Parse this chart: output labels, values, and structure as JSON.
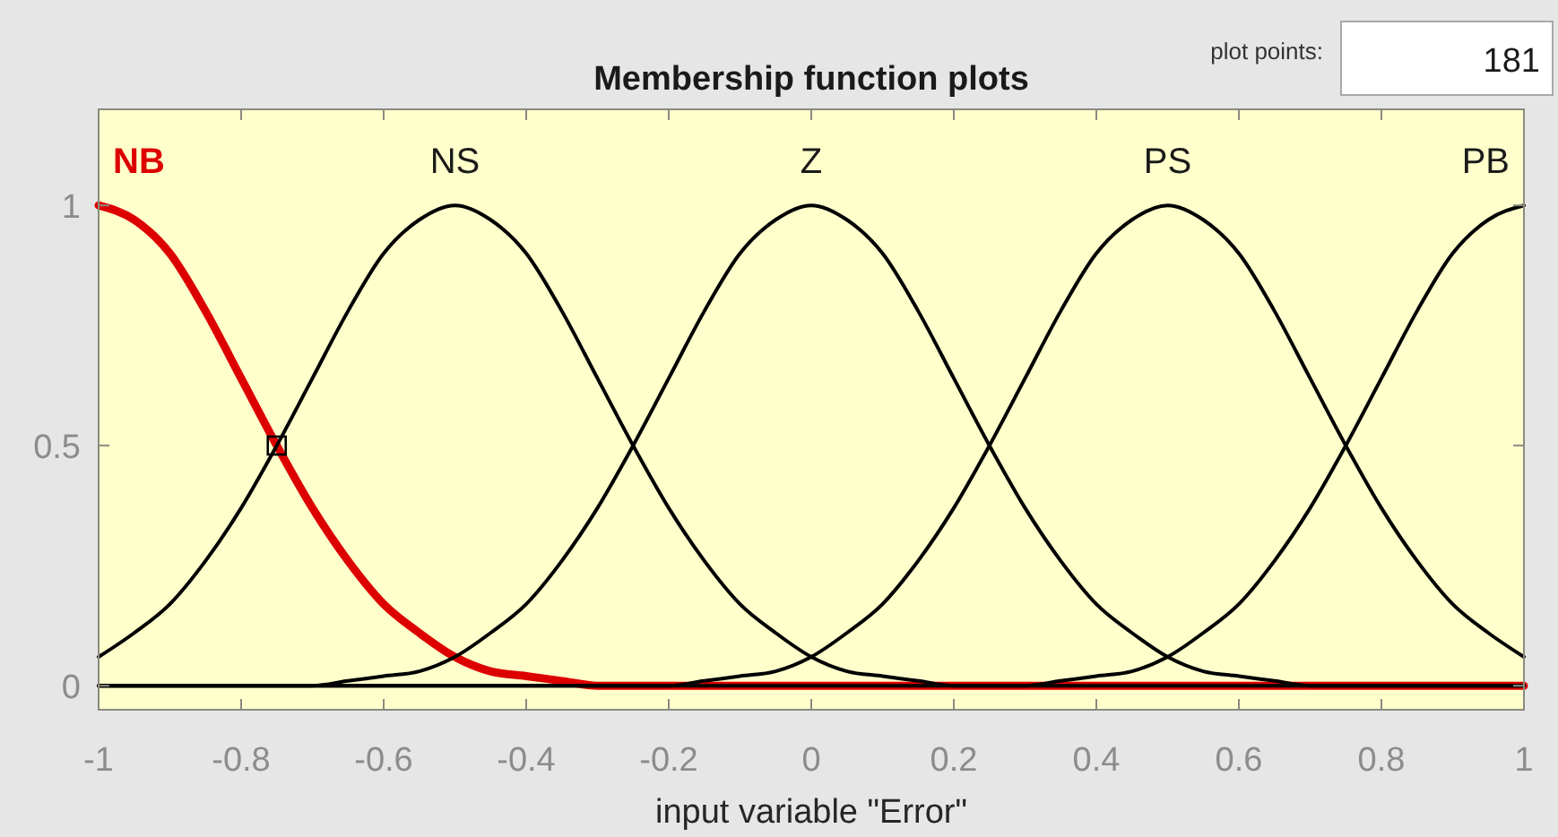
{
  "chart_data": {
    "type": "line",
    "title": "Membership function plots",
    "xlabel": "input variable \"Error\"",
    "annotations": [
      "plot points:",
      "181"
    ],
    "x": [
      -1,
      -0.95,
      -0.9,
      -0.85,
      -0.8,
      -0.75,
      -0.7,
      -0.65,
      -0.6,
      -0.55,
      -0.5,
      -0.45,
      -0.4,
      -0.35,
      -0.3,
      -0.25,
      -0.2,
      -0.15,
      -0.1,
      -0.05,
      0,
      0.05,
      0.1,
      0.15,
      0.2,
      0.25,
      0.3,
      0.35,
      0.4,
      0.45,
      0.5,
      0.55,
      0.6,
      0.65,
      0.7,
      0.75,
      0.8,
      0.85,
      0.9,
      0.95,
      1
    ],
    "series": [
      {
        "name": "NB",
        "color": "#dd0000",
        "values": [
          1,
          0.97,
          0.9,
          0.78,
          0.64,
          0.5,
          0.37,
          0.26,
          0.17,
          0.11,
          0.06,
          0.03,
          0.02,
          0.01,
          0,
          0,
          0,
          0,
          0,
          0,
          0,
          0,
          0,
          0,
          0,
          0,
          0,
          0,
          0,
          0,
          0,
          0,
          0,
          0,
          0,
          0,
          0,
          0,
          0,
          0,
          0
        ]
      },
      {
        "name": "NS",
        "color": "#000000",
        "values": [
          0.06,
          0.11,
          0.17,
          0.26,
          0.37,
          0.5,
          0.64,
          0.78,
          0.9,
          0.97,
          1,
          0.97,
          0.9,
          0.78,
          0.64,
          0.5,
          0.37,
          0.26,
          0.17,
          0.11,
          0.06,
          0.03,
          0.02,
          0.01,
          0,
          0,
          0,
          0,
          0,
          0,
          0,
          0,
          0,
          0,
          0,
          0,
          0,
          0,
          0,
          0,
          0
        ]
      },
      {
        "name": "Z",
        "color": "#000000",
        "values": [
          0,
          0,
          0,
          0,
          0,
          0,
          0,
          0.01,
          0.02,
          0.03,
          0.06,
          0.11,
          0.17,
          0.26,
          0.37,
          0.5,
          0.64,
          0.78,
          0.9,
          0.97,
          1,
          0.97,
          0.9,
          0.78,
          0.64,
          0.5,
          0.37,
          0.26,
          0.17,
          0.11,
          0.06,
          0.03,
          0.02,
          0.01,
          0,
          0,
          0,
          0,
          0,
          0,
          0
        ]
      },
      {
        "name": "PS",
        "color": "#000000",
        "values": [
          0,
          0,
          0,
          0,
          0,
          0,
          0,
          0,
          0,
          0,
          0,
          0,
          0,
          0,
          0,
          0,
          0,
          0.01,
          0.02,
          0.03,
          0.06,
          0.11,
          0.17,
          0.26,
          0.37,
          0.5,
          0.64,
          0.78,
          0.9,
          0.97,
          1,
          0.97,
          0.9,
          0.78,
          0.64,
          0.5,
          0.37,
          0.26,
          0.17,
          0.11,
          0.06
        ]
      },
      {
        "name": "PB",
        "color": "#000000",
        "values": [
          0,
          0,
          0,
          0,
          0,
          0,
          0,
          0,
          0,
          0,
          0,
          0,
          0,
          0,
          0,
          0,
          0,
          0,
          0,
          0,
          0,
          0,
          0,
          0,
          0,
          0,
          0,
          0.01,
          0.02,
          0.03,
          0.06,
          0.11,
          0.17,
          0.26,
          0.37,
          0.5,
          0.64,
          0.78,
          0.9,
          0.97,
          1
        ]
      },
      {
        "type": "scatter",
        "x": [
          -0.75
        ],
        "values": [
          0.5
        ],
        "color": "#000000",
        "marker": "square"
      }
    ],
    "xlim": [
      -1,
      1
    ],
    "ylim": [
      -0.05,
      1.2
    ],
    "xticks": [
      -1,
      -0.8,
      -0.6,
      -0.4,
      -0.2,
      0,
      0.2,
      0.4,
      0.6,
      0.8,
      1
    ],
    "yticks": [
      0,
      0.5,
      1
    ],
    "grid": false,
    "legend": false
  }
}
